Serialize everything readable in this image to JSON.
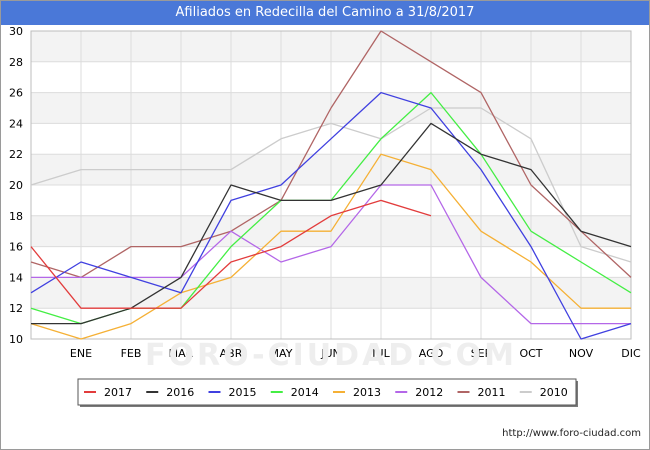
{
  "title": "Afiliados en Redecilla del Camino a 31/8/2017",
  "footer": "http://www.foro-ciudad.com",
  "watermark": "FORO-CIUDAD.COM",
  "chart_data": {
    "type": "line",
    "categories": [
      "",
      "ENE",
      "FEB",
      "MAR",
      "ABR",
      "MAY",
      "JUN",
      "JUL",
      "AGO",
      "SEP",
      "OCT",
      "NOV",
      "DIC"
    ],
    "ylim": [
      10,
      30
    ],
    "yticks": [
      10,
      12,
      14,
      16,
      18,
      20,
      22,
      24,
      26,
      28,
      30
    ],
    "grid": true,
    "legend_position": "bottom",
    "series": [
      {
        "name": "2017",
        "color": "#e23c3c",
        "values": [
          16,
          12,
          12,
          12,
          15,
          16,
          18,
          19,
          18,
          null,
          null,
          null,
          null
        ]
      },
      {
        "name": "2016",
        "color": "#333333",
        "values": [
          11,
          11,
          12,
          14,
          20,
          19,
          19,
          20,
          24,
          22,
          21,
          17,
          16
        ]
      },
      {
        "name": "2015",
        "color": "#4040e0",
        "values": [
          13,
          15,
          14,
          13,
          19,
          20,
          23,
          26,
          25,
          21,
          16,
          10,
          11
        ]
      },
      {
        "name": "2014",
        "color": "#44ee44",
        "values": [
          12,
          11,
          12,
          12,
          16,
          19,
          19,
          23,
          26,
          22,
          17,
          15,
          13
        ]
      },
      {
        "name": "2013",
        "color": "#f5b035",
        "values": [
          11,
          10,
          11,
          13,
          14,
          17,
          17,
          22,
          21,
          17,
          15,
          12,
          12
        ]
      },
      {
        "name": "2012",
        "color": "#b467e8",
        "values": [
          14,
          14,
          14,
          14,
          17,
          15,
          16,
          20,
          20,
          14,
          11,
          11,
          11
        ]
      },
      {
        "name": "2011",
        "color": "#b06565",
        "values": [
          15,
          14,
          16,
          16,
          17,
          19,
          25,
          30,
          28,
          26,
          20,
          17,
          14
        ]
      },
      {
        "name": "2010",
        "color": "#cccccc",
        "values": [
          20,
          21,
          21,
          21,
          21,
          23,
          24,
          23,
          25,
          25,
          23,
          16,
          15
        ]
      }
    ]
  }
}
